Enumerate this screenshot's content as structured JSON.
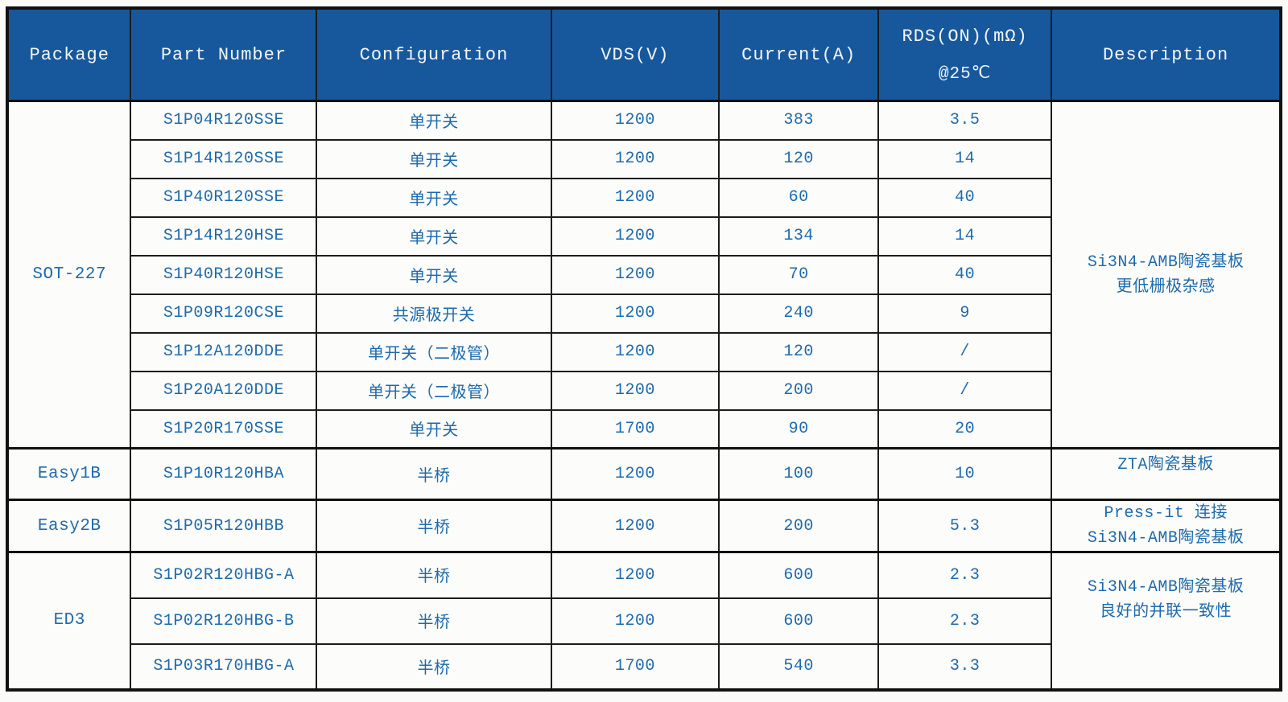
{
  "colors": {
    "header_bg": "#17589D",
    "header_text": "#F2F6FA",
    "cell_text": "#1E6AAD",
    "grid_line": "#1C1C1C"
  },
  "header": {
    "package": "Package",
    "part_number": "Part Number",
    "configuration": "Configuration",
    "vds": "VDS(V)",
    "current": "Current(A)",
    "rds_line1": "RDS(ON)(mΩ)",
    "rds_line2": "@25℃",
    "description": "Description"
  },
  "groups": [
    {
      "package": "SOT-227",
      "description_line1": "Si3N4-AMB陶瓷基板",
      "description_line2": "更低栅极杂感",
      "rows": [
        {
          "part": "S1P04R120SSE",
          "config": "单开关",
          "vds": "1200",
          "current": "383",
          "rds": "3.5"
        },
        {
          "part": "S1P14R120SSE",
          "config": "单开关",
          "vds": "1200",
          "current": "120",
          "rds": "14"
        },
        {
          "part": "S1P40R120SSE",
          "config": "单开关",
          "vds": "1200",
          "current": "60",
          "rds": "40"
        },
        {
          "part": "S1P14R120HSE",
          "config": "单开关",
          "vds": "1200",
          "current": "134",
          "rds": "14"
        },
        {
          "part": "S1P40R120HSE",
          "config": "单开关",
          "vds": "1200",
          "current": "70",
          "rds": "40"
        },
        {
          "part": "S1P09R120CSE",
          "config": "共源极开关",
          "vds": "1200",
          "current": "240",
          "rds": "9"
        },
        {
          "part": "S1P12A120DDE",
          "config": "单开关（二极管）",
          "vds": "1200",
          "current": "120",
          "rds": "/"
        },
        {
          "part": "S1P20A120DDE",
          "config": "单开关（二极管）",
          "vds": "1200",
          "current": "200",
          "rds": "/"
        },
        {
          "part": "S1P20R170SSE",
          "config": "单开关",
          "vds": "1700",
          "current": "90",
          "rds": "20"
        }
      ]
    },
    {
      "package": "Easy1B",
      "description_line1": "ZTA陶瓷基板",
      "description_line2": "",
      "rows": [
        {
          "part": "S1P10R120HBA",
          "config": "半桥",
          "vds": "1200",
          "current": "100",
          "rds": "10"
        }
      ]
    },
    {
      "package": "Easy2B",
      "description_line1": "Press-it 连接",
      "description_line2": "Si3N4-AMB陶瓷基板",
      "rows": [
        {
          "part": "S1P05R120HBB",
          "config": "半桥",
          "vds": "1200",
          "current": "200",
          "rds": "5.3"
        }
      ]
    },
    {
      "package": "ED3",
      "description_line1": "Si3N4-AMB陶瓷基板",
      "description_line2": "良好的并联一致性",
      "rows": [
        {
          "part": "S1P02R120HBG-A",
          "config": "半桥",
          "vds": "1200",
          "current": "600",
          "rds": "2.3"
        },
        {
          "part": "S1P02R120HBG-B",
          "config": "半桥",
          "vds": "1200",
          "current": "600",
          "rds": "2.3"
        },
        {
          "part": "S1P03R170HBG-A",
          "config": "半桥",
          "vds": "1700",
          "current": "540",
          "rds": "3.3"
        }
      ]
    }
  ]
}
